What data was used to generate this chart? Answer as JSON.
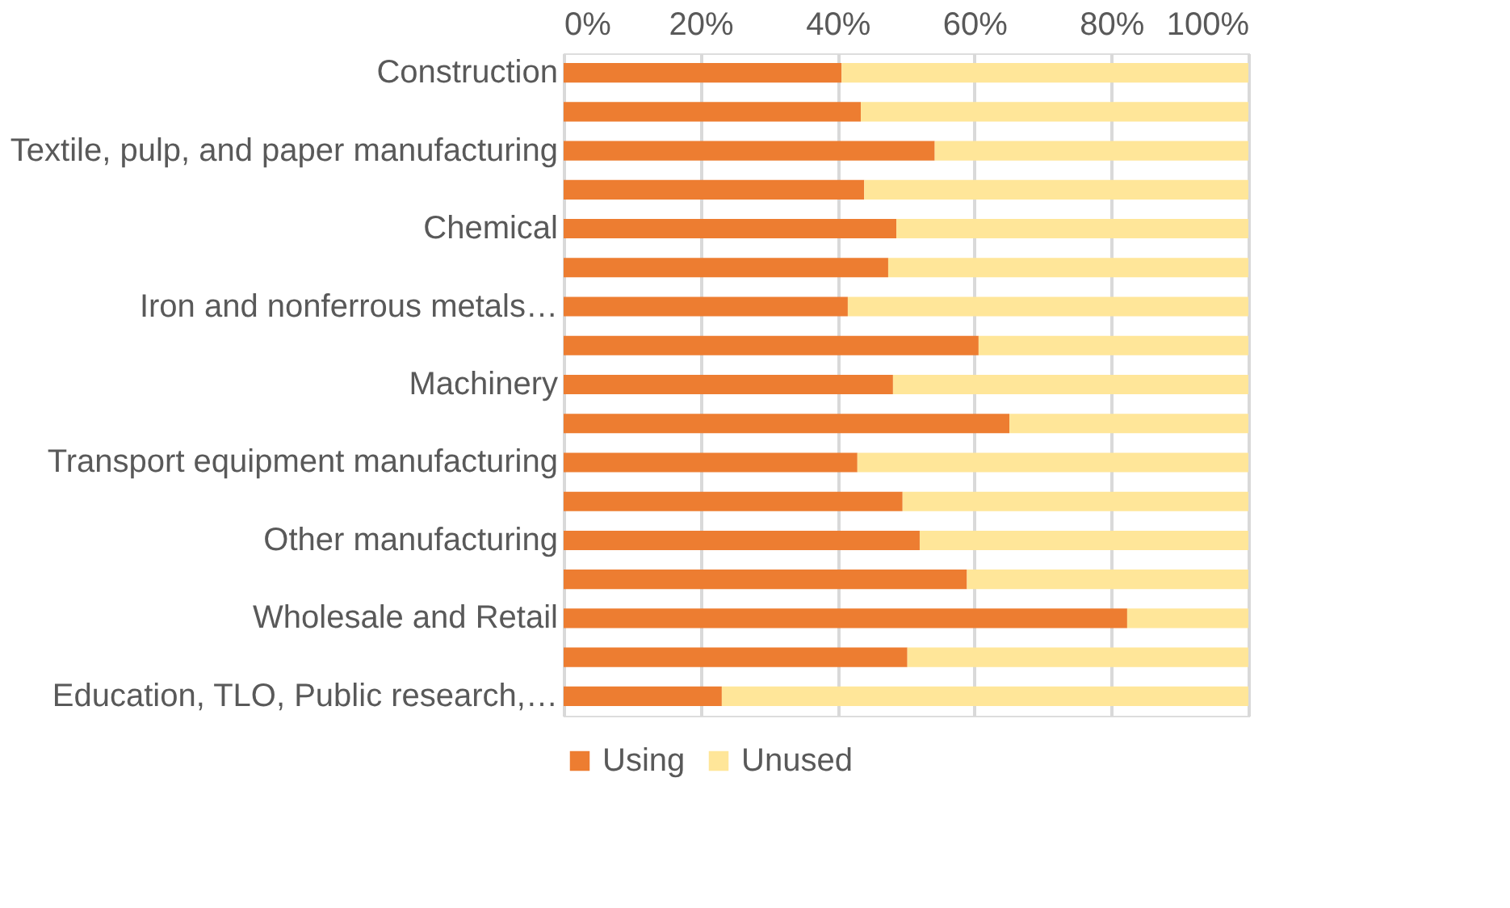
{
  "chart_data": {
    "type": "bar",
    "orientation": "horizontal",
    "stacked": true,
    "categories": [
      "Construction",
      null,
      "Textile, pulp, and paper manufacturing",
      null,
      "Chemical",
      null,
      "Iron and nonferrous metals…",
      null,
      "Machinery",
      null,
      "Transport equipment manufacturing",
      null,
      "Other manufacturing",
      null,
      "Wholesale and Retail",
      null,
      "Education, TLO, Public research,…"
    ],
    "series": [
      {
        "name": "Using",
        "color": "#ed7d31",
        "values": [
          40.6,
          43.4,
          54.2,
          43.9,
          48.6,
          47.4,
          41.5,
          60.6,
          48.1,
          65.1,
          42.9,
          49.5,
          52.0,
          58.9,
          82.3,
          50.2,
          23.1
        ]
      },
      {
        "name": "Unused",
        "color": "#ffe699",
        "values": [
          59.4,
          56.6,
          45.8,
          56.1,
          51.4,
          52.6,
          58.5,
          39.4,
          51.9,
          34.9,
          57.1,
          50.5,
          48.0,
          41.1,
          17.7,
          49.8,
          76.9
        ]
      }
    ],
    "xlim": [
      0,
      100
    ],
    "xticks": [
      {
        "value": 0,
        "label": "0%"
      },
      {
        "value": 20,
        "label": "20%"
      },
      {
        "value": 40,
        "label": "40%"
      },
      {
        "value": 60,
        "label": "60%"
      },
      {
        "value": 80,
        "label": "80%"
      },
      {
        "value": 100,
        "label": "100%"
      }
    ],
    "grid": "x",
    "legend": "bottom"
  }
}
